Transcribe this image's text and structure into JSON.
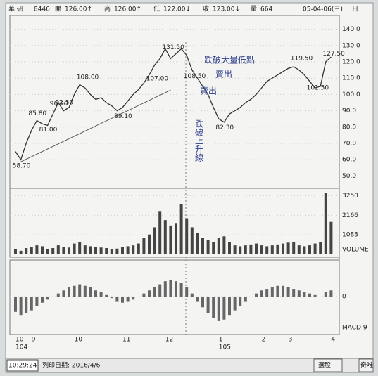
{
  "header": {
    "name": "華 研",
    "code": "8446",
    "open_label": "開",
    "open": "126.00↑",
    "high_label": "高",
    "high": "126.00↑",
    "low_label": "低",
    "low": "122.00↓",
    "close_label": "收",
    "close": "123.00↓",
    "volume_label": "量",
    "volume": "664",
    "date": "05-04-06(三)",
    "period": "日"
  },
  "chart_data": [
    {
      "type": "line",
      "color": "#333333",
      "categories": [
        "10",
        null,
        null,
        "9",
        null,
        null,
        null,
        null,
        null,
        null,
        null,
        "10",
        null,
        null,
        null,
        null,
        null,
        null,
        null,
        null,
        "11",
        null,
        null,
        null,
        null,
        null,
        null,
        null,
        "12",
        null,
        null,
        null,
        null,
        null,
        null,
        null,
        null,
        null,
        "1",
        null,
        null,
        null,
        null,
        null,
        null,
        null,
        "2",
        null,
        null,
        null,
        null,
        "3",
        null,
        null,
        null,
        null,
        null,
        null,
        null,
        "4"
      ],
      "year_labels": [
        {
          "index": 0,
          "label": "104"
        },
        {
          "index": 38,
          "label": "105"
        }
      ],
      "values": [
        65,
        60,
        70,
        78,
        84,
        82,
        81,
        88,
        95,
        90,
        92,
        100,
        106,
        104,
        100,
        97,
        98,
        95,
        93,
        90,
        92,
        96,
        100,
        103,
        107,
        112,
        118,
        122,
        128,
        122,
        125,
        128,
        124,
        115,
        110,
        105,
        100,
        92,
        85,
        83,
        88,
        90,
        92,
        95,
        97,
        100,
        104,
        108,
        110,
        112,
        114,
        116,
        117,
        115,
        112,
        108,
        104,
        105,
        120,
        123
      ],
      "ylim": [
        45,
        145
      ],
      "yticks": [
        {
          "value": 50,
          "label": "50.0"
        },
        {
          "value": 60,
          "label": "60.0"
        },
        {
          "value": 70,
          "label": "70.0"
        },
        {
          "value": 80,
          "label": "80.0"
        },
        {
          "value": 90,
          "label": "90.0"
        },
        {
          "value": 100,
          "label": "100.0"
        },
        {
          "value": 110,
          "label": "110.0"
        },
        {
          "value": 120,
          "label": "120.0"
        },
        {
          "value": 130,
          "label": "130.0"
        },
        {
          "value": 140,
          "label": "140.0"
        }
      ],
      "annotations": [
        {
          "x": 1,
          "y": 58.7,
          "label": "58.70"
        },
        {
          "x": 4,
          "y": 85.8,
          "label": "85.80"
        },
        {
          "x": 6,
          "y": 81,
          "label": "81.00"
        },
        {
          "x": 9,
          "y": 92.5,
          "label": "92.50"
        },
        {
          "x": 8,
          "y": 96.9,
          "label": "96.90"
        },
        {
          "x": 13,
          "y": 108,
          "label": "108.00"
        },
        {
          "x": 20,
          "y": 89.1,
          "label": "89.10"
        },
        {
          "x": 26,
          "y": 107,
          "label": "107.00"
        },
        {
          "x": 29,
          "y": 131.5,
          "label": "131.50"
        },
        {
          "x": 33,
          "y": 108.5,
          "label": "108.50"
        },
        {
          "x": 39,
          "y": 82.3,
          "label": "82.30"
        },
        {
          "x": 53,
          "y": 119.5,
          "label": "119.50"
        },
        {
          "x": 59,
          "y": 127.5,
          "label": "127.50"
        },
        {
          "x": 56,
          "y": 101.5,
          "label": "101.50"
        }
      ],
      "notes": [
        "跌破大量低點",
        "賣出",
        "賣出",
        "跌破上升線"
      ]
    },
    {
      "type": "bar",
      "color": "#444444",
      "legend": "VOLUME",
      "values": [
        300,
        200,
        350,
        400,
        500,
        450,
        300,
        350,
        500,
        400,
        380,
        600,
        700,
        500,
        450,
        400,
        380,
        350,
        300,
        320,
        400,
        450,
        500,
        600,
        900,
        1100,
        1500,
        2400,
        1900,
        1600,
        1700,
        2800,
        2000,
        1500,
        1200,
        900,
        800,
        700,
        900,
        1000,
        700,
        500,
        450,
        500,
        550,
        600,
        500,
        450,
        500,
        550,
        600,
        650,
        700,
        500,
        450,
        500,
        600,
        700,
        3400,
        1800
      ],
      "ylim": [
        0,
        3500
      ],
      "yticks": [
        1083,
        2166,
        3250
      ]
    },
    {
      "type": "bar",
      "color": "#666666",
      "legend": "MACD 9",
      "values": [
        -1,
        -1.2,
        -1.1,
        -0.9,
        -0.6,
        -0.4,
        -0.2,
        0,
        0.2,
        0.4,
        0.6,
        0.7,
        0.8,
        0.7,
        0.6,
        0.4,
        0.3,
        0.1,
        -0.1,
        -0.3,
        -0.4,
        -0.3,
        -0.2,
        0,
        0.2,
        0.4,
        0.6,
        0.8,
        1,
        1.1,
        1,
        0.9,
        0.6,
        0.2,
        -0.3,
        -0.7,
        -1.1,
        -1.4,
        -1.6,
        -1.5,
        -1.2,
        -0.9,
        -0.6,
        -0.3,
        0,
        0.2,
        0.4,
        0.5,
        0.6,
        0.7,
        0.7,
        0.6,
        0.5,
        0.4,
        0.3,
        0.2,
        0.1,
        0,
        0.3,
        0.4
      ],
      "ylim": [
        -2.2,
        2.2
      ],
      "yticks": [
        0
      ]
    }
  ],
  "status": {
    "time": "10:29:24",
    "print_date": "列印日期: 2016/4/6",
    "button1": "選股",
    "button2": "奇唯"
  }
}
